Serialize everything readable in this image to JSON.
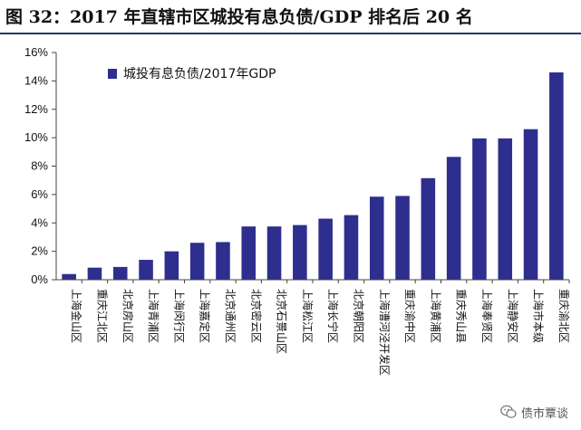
{
  "header": {
    "title": "图 32：2017 年直辖市区城投有息负债/GDP 排名后 20 名"
  },
  "watermark": {
    "text": "债市覃谈",
    "icon": "wechat-icon"
  },
  "colors": {
    "bar": "#2e2e8f",
    "axis": "#444444",
    "rule": "#1f3864"
  },
  "chart_data": {
    "type": "bar",
    "title": "2017 年直辖市区城投有息负债/GDP 排名后 20 名",
    "xlabel": "",
    "ylabel": "",
    "ylim": [
      0,
      16
    ],
    "yticks": [
      0,
      2,
      4,
      6,
      8,
      10,
      12,
      14,
      16
    ],
    "ytick_labels": [
      "0%",
      "2%",
      "4%",
      "6%",
      "8%",
      "10%",
      "12%",
      "14%",
      "16%"
    ],
    "legend": {
      "label": "城投有息负债/2017年GDP",
      "position": "top-left"
    },
    "grid": false,
    "categories": [
      "上海金山区",
      "重庆江北区",
      "北京房山区",
      "上海青浦区",
      "上海闵行区",
      "上海嘉定区",
      "北京通州区",
      "北京密云区",
      "北京石景山区",
      "上海松江区",
      "上海长宁区",
      "北京朝阳区",
      "上海漕河泾开发区",
      "重庆渝中区",
      "上海黄浦区",
      "重庆秀山县",
      "上海奉贤区",
      "上海静安区",
      "上海市本级",
      "重庆渝北区"
    ],
    "series": [
      {
        "name": "城投有息负债/2017年GDP",
        "values": [
          0.4,
          0.85,
          0.9,
          1.4,
          2.0,
          2.6,
          2.65,
          3.75,
          3.75,
          3.85,
          4.3,
          4.55,
          5.85,
          5.9,
          7.15,
          8.65,
          9.95,
          9.95,
          10.6,
          14.6
        ]
      }
    ]
  }
}
